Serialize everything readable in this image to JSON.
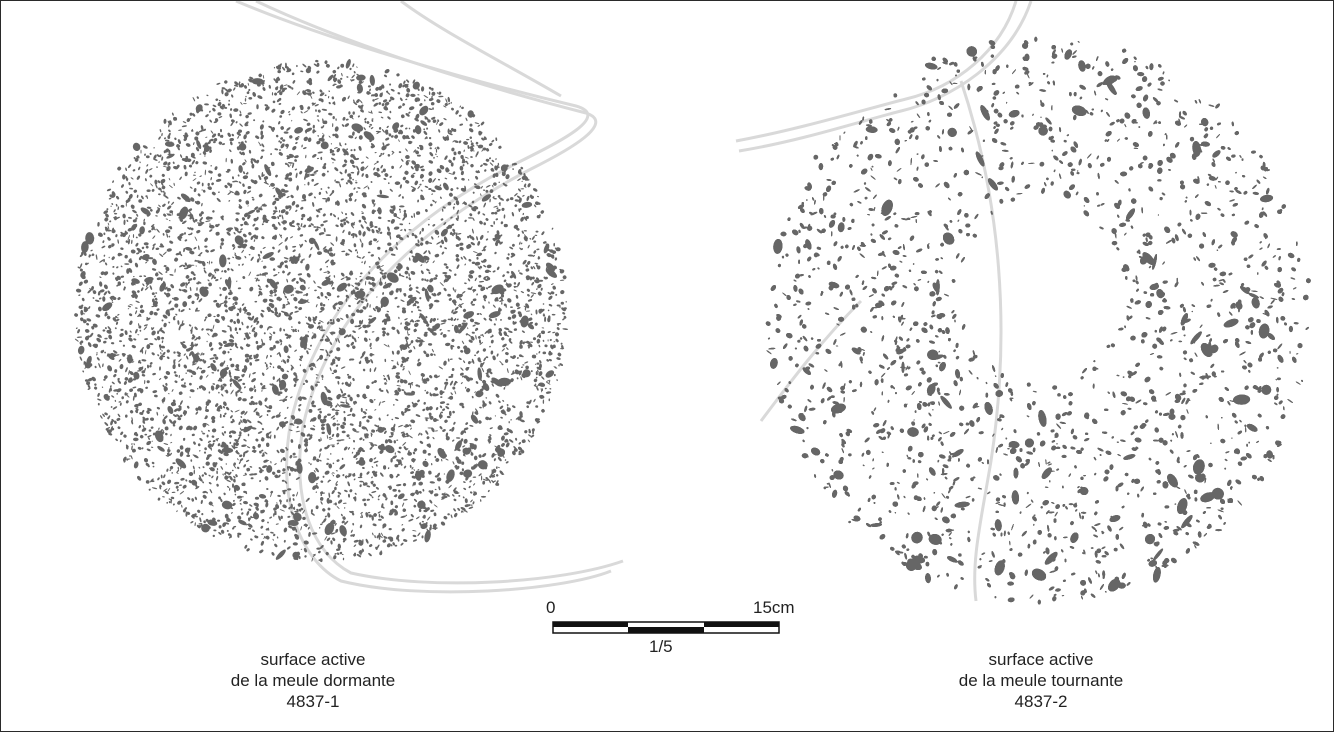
{
  "colors": {
    "stipple": "#666666",
    "ghost_outline": "#d9d9d9",
    "frame": "#2a2a2a",
    "scale_bar": "#111111"
  },
  "figures": [
    {
      "id": "dormante",
      "caption": [
        "surface active",
        "de la meule dormante",
        "4837-1"
      ],
      "central_opening": false
    },
    {
      "id": "tournante",
      "caption": [
        "surface active",
        "de la meule tournante",
        "4837-2"
      ],
      "central_opening": true
    }
  ],
  "scale": {
    "start_label": "0",
    "end_label": "15cm",
    "ratio_label": "1/5",
    "segments": 3
  }
}
